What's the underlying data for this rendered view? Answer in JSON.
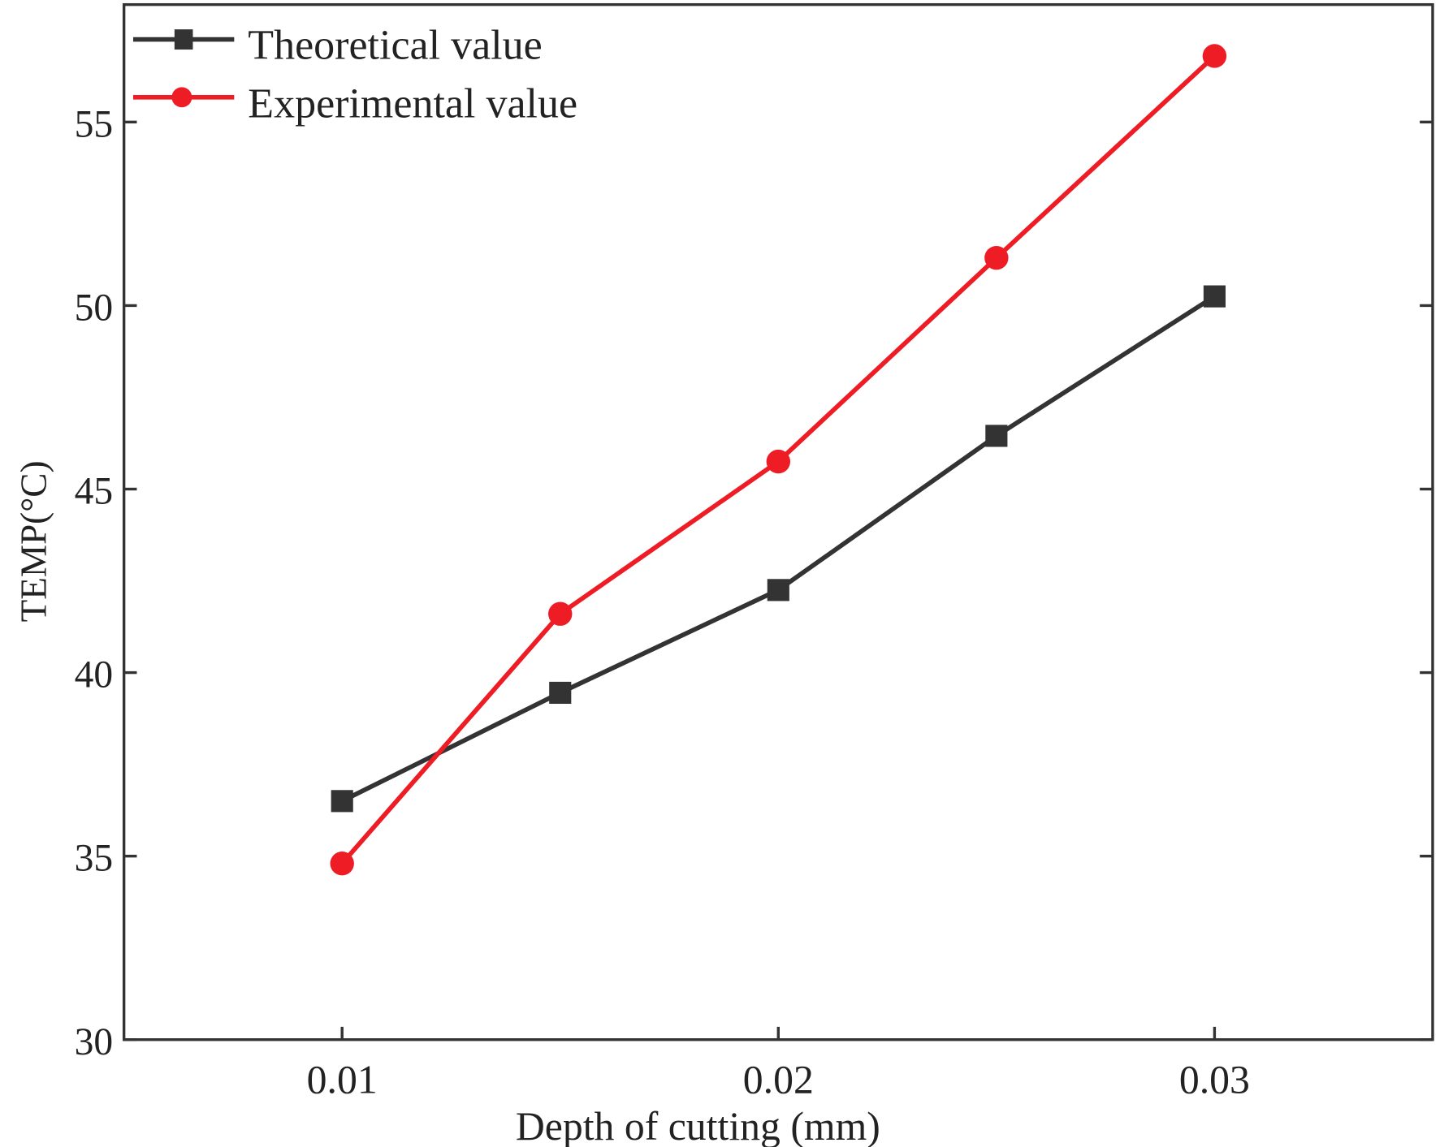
{
  "chart_data": {
    "type": "line",
    "title": "",
    "xlabel": "Depth of cutting (mm)",
    "ylabel": "TEMP(°C)",
    "x": [
      0.01,
      0.015,
      0.02,
      0.025,
      0.03
    ],
    "xlim": [
      0.005,
      0.035
    ],
    "ylim": [
      30,
      58.2
    ],
    "xticks": [
      0.01,
      0.02,
      0.03
    ],
    "xtick_labels": [
      "0.01",
      "0.02",
      "0.03"
    ],
    "yticks": [
      30,
      35,
      40,
      45,
      50,
      55
    ],
    "ytick_labels": [
      "30",
      "35",
      "40",
      "45",
      "50",
      "55"
    ],
    "grid": false,
    "legend_position": "top-left",
    "series": [
      {
        "name": "Theoretical value",
        "color": "#333333",
        "marker": "square",
        "values": [
          36.5,
          39.45,
          42.25,
          46.45,
          50.25
        ]
      },
      {
        "name": "Experimental value",
        "color": "#ee1c25",
        "marker": "circle",
        "values": [
          34.8,
          41.6,
          45.75,
          51.3,
          56.8
        ]
      }
    ]
  }
}
